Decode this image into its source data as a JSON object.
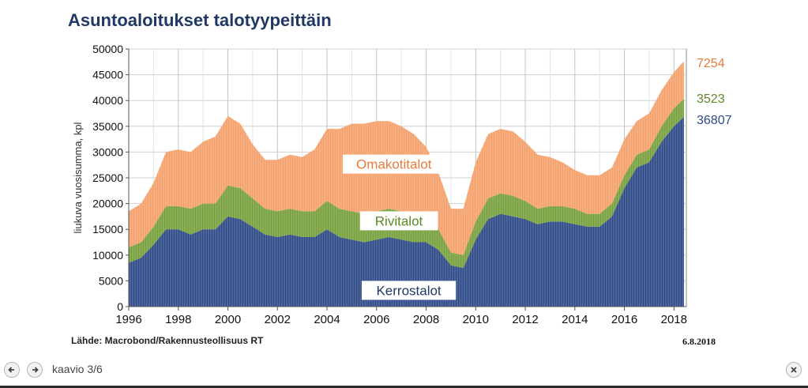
{
  "title": "Asuntoaloitukset talotyypeittäin",
  "source": "Lähde: Macrobond/Rakennusteollisuus RT",
  "date": "6.8.2018",
  "nav": {
    "label": "kaavio 3/6",
    "prev_icon": "arrow-left-icon",
    "next_icon": "arrow-right-icon",
    "close_icon": "close-icon"
  },
  "chart_data": {
    "type": "area",
    "stacked": true,
    "ylabel": "liukuva vuosisumma, kpl",
    "ylim": [
      0,
      50000
    ],
    "yticks": [
      0,
      5000,
      10000,
      15000,
      20000,
      25000,
      30000,
      35000,
      40000,
      45000,
      50000
    ],
    "xlim": [
      1996,
      2018.5
    ],
    "xticks": [
      "1996",
      "1998",
      "2000",
      "2002",
      "2004",
      "2006",
      "2008",
      "2010",
      "2012",
      "2014",
      "2016",
      "2018"
    ],
    "grid": true,
    "x": [
      1996.0,
      1996.5,
      1997.0,
      1997.5,
      1998.0,
      1998.5,
      1999.0,
      1999.5,
      2000.0,
      2000.5,
      2001.0,
      2001.5,
      2002.0,
      2002.5,
      2003.0,
      2003.5,
      2004.0,
      2004.5,
      2005.0,
      2005.5,
      2006.0,
      2006.5,
      2007.0,
      2007.5,
      2008.0,
      2008.5,
      2009.0,
      2009.5,
      2010.0,
      2010.5,
      2011.0,
      2011.5,
      2012.0,
      2012.5,
      2013.0,
      2013.5,
      2014.0,
      2014.5,
      2015.0,
      2015.5,
      2016.0,
      2016.5,
      2017.0,
      2017.5,
      2018.0,
      2018.4
    ],
    "series": [
      {
        "name": "Kerrostalot",
        "color": "#2e4a87",
        "end_label": "36807",
        "values": [
          8500,
          9500,
          12000,
          15000,
          15000,
          14000,
          15000,
          15000,
          17500,
          17000,
          15500,
          14000,
          13500,
          14000,
          13500,
          13500,
          15000,
          13500,
          13000,
          12500,
          13000,
          13500,
          13000,
          12500,
          12500,
          11000,
          8000,
          7500,
          13000,
          17000,
          18000,
          17500,
          17000,
          16000,
          16500,
          16500,
          16000,
          15500,
          15500,
          17500,
          23000,
          27000,
          28000,
          32000,
          35000,
          36807
        ]
      },
      {
        "name": "Rivitalot",
        "color": "#77a03c",
        "end_label": "3523",
        "values": [
          3000,
          3000,
          3500,
          4500,
          4500,
          5000,
          5000,
          5000,
          6000,
          6000,
          5500,
          5000,
          5000,
          5000,
          5000,
          5000,
          5500,
          5500,
          5500,
          5500,
          5500,
          5500,
          5500,
          5000,
          4500,
          4000,
          2500,
          2500,
          3500,
          4000,
          4000,
          4000,
          3500,
          3000,
          3000,
          3000,
          3000,
          2500,
          2500,
          2500,
          2500,
          2500,
          2500,
          3000,
          3500,
          3523
        ]
      },
      {
        "name": "Omakotitalot",
        "color": "#f4a06b",
        "end_label": "7254",
        "values": [
          7000,
          7500,
          8500,
          10500,
          11000,
          11000,
          12000,
          13000,
          13500,
          12500,
          10500,
          9500,
          10000,
          10500,
          10500,
          12000,
          14000,
          15500,
          17000,
          17500,
          17500,
          17000,
          16500,
          16000,
          14000,
          11000,
          8500,
          9000,
          11500,
          12500,
          12500,
          12500,
          11500,
          10500,
          9500,
          8500,
          7500,
          7500,
          7500,
          7000,
          7000,
          6500,
          7000,
          7000,
          7000,
          7254
        ]
      }
    ],
    "area_labels": [
      "Omakotitalot",
      "Rivitalot",
      "Kerrostalot"
    ]
  }
}
